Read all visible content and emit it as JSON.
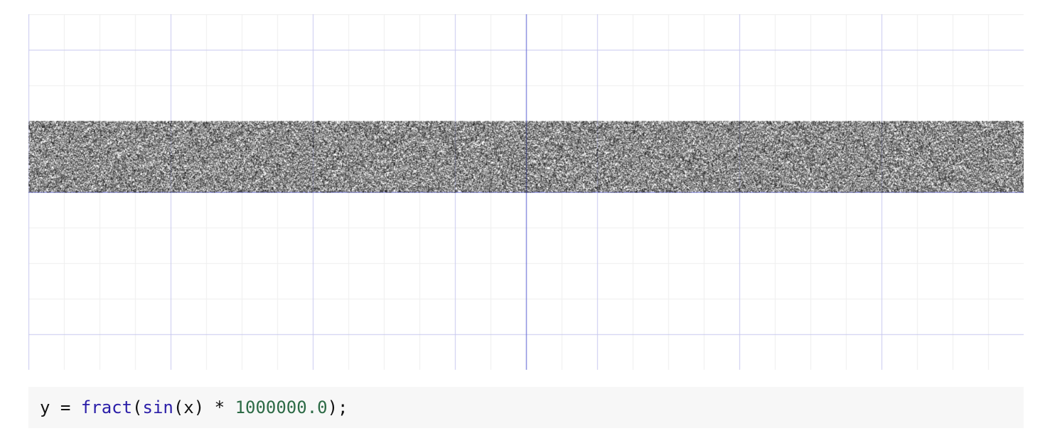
{
  "plot": {
    "function": "y = fract(sin(x) * 1000000.0)",
    "x_range": [
      -7,
      7
    ],
    "y_range": [
      -2.5,
      2.5
    ],
    "point_color": "#000000",
    "axis_color": "#6f74d8",
    "major_grid_color": "#c8c9ef",
    "minor_grid_color": "#eeeeee",
    "major_grid_step": 2,
    "minor_grid_step": 0.5
  },
  "code": {
    "tokens": [
      {
        "text": "y = ",
        "kind": "plain"
      },
      {
        "text": "fract",
        "kind": "fn"
      },
      {
        "text": "(",
        "kind": "plain"
      },
      {
        "text": "sin",
        "kind": "fn"
      },
      {
        "text": "(x) * ",
        "kind": "plain"
      },
      {
        "text": "1000000.0",
        "kind": "num"
      },
      {
        "text": ");",
        "kind": "plain"
      }
    ]
  }
}
